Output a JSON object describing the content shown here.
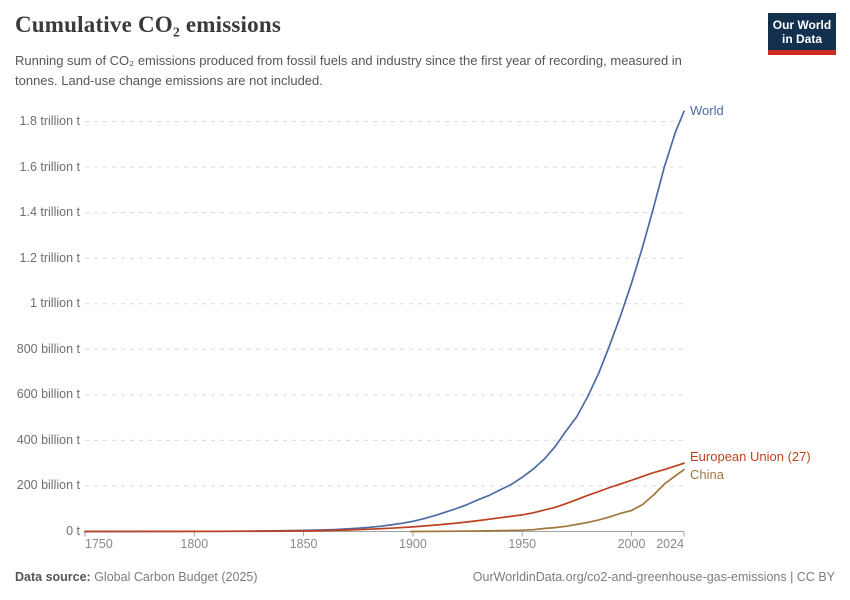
{
  "header": {
    "title": "Cumulative CO₂ emissions",
    "subtitle": "Running sum of CO₂ emissions produced from fossil fuels and industry since the first year of recording, measured in tonnes. Land-use change emissions are not included.",
    "logo": {
      "line1": "Our World",
      "line2": "in Data",
      "background": "#14304f",
      "accent": "#d02a20"
    }
  },
  "footer": {
    "source_label": "Data source:",
    "source_value": " Global Carbon Budget (2025)",
    "credit": "OurWorldinData.org/co2-and-greenhouse-gas-emissions | CC BY"
  },
  "chart_data": {
    "type": "line",
    "title": "Cumulative CO₂ emissions",
    "unit": "tonnes of CO₂ (series values in billions of tonnes)",
    "grid": "horizontal dashed gridlines, solid zero baseline",
    "legend": "end-of-line labels",
    "x_axis": {
      "range": [
        1750,
        2024
      ],
      "ticks": [
        1750,
        1800,
        1850,
        1900,
        1950,
        2000,
        2024
      ]
    },
    "y_axis": {
      "range_billion_t": [
        0,
        1800
      ],
      "ticks": [
        {
          "value": 0,
          "label": "0 t"
        },
        {
          "value": 200,
          "label": "200 billion t"
        },
        {
          "value": 400,
          "label": "400 billion t"
        },
        {
          "value": 600,
          "label": "600 billion t"
        },
        {
          "value": 800,
          "label": "800 billion t"
        },
        {
          "value": 1000,
          "label": "1 trillion t"
        },
        {
          "value": 1200,
          "label": "1.2 trillion t"
        },
        {
          "value": 1400,
          "label": "1.4 trillion t"
        },
        {
          "value": 1600,
          "label": "1.6 trillion t"
        },
        {
          "value": 1800,
          "label": "1.8 trillion t"
        }
      ]
    },
    "series": [
      {
        "name": "World",
        "color": "#4C6BA5",
        "points": [
          [
            1750,
            0
          ],
          [
            1760,
            0.1
          ],
          [
            1770,
            0.2
          ],
          [
            1780,
            0.3
          ],
          [
            1790,
            0.4
          ],
          [
            1800,
            0.7
          ],
          [
            1810,
            1.0
          ],
          [
            1820,
            1.5
          ],
          [
            1830,
            2.2
          ],
          [
            1840,
            3.3
          ],
          [
            1850,
            5
          ],
          [
            1855,
            6
          ],
          [
            1860,
            7.5
          ],
          [
            1865,
            9
          ],
          [
            1870,
            11.5
          ],
          [
            1875,
            14.5
          ],
          [
            1880,
            18.5
          ],
          [
            1885,
            23
          ],
          [
            1890,
            29
          ],
          [
            1895,
            36
          ],
          [
            1900,
            45
          ],
          [
            1905,
            56
          ],
          [
            1910,
            70
          ],
          [
            1915,
            85
          ],
          [
            1920,
            101
          ],
          [
            1925,
            119
          ],
          [
            1930,
            140
          ],
          [
            1935,
            159
          ],
          [
            1940,
            183
          ],
          [
            1945,
            207
          ],
          [
            1950,
            238
          ],
          [
            1955,
            274
          ],
          [
            1960,
            317
          ],
          [
            1965,
            372
          ],
          [
            1970,
            440
          ],
          [
            1975,
            505
          ],
          [
            1980,
            593
          ],
          [
            1985,
            695
          ],
          [
            1990,
            818
          ],
          [
            1995,
            948
          ],
          [
            2000,
            1090
          ],
          [
            2005,
            1248
          ],
          [
            2010,
            1420
          ],
          [
            2015,
            1600
          ],
          [
            2020,
            1752
          ],
          [
            2024,
            1845
          ]
        ]
      },
      {
        "name": "European Union (27)",
        "color": "#BF4123",
        "points": [
          [
            1750,
            0
          ],
          [
            1800,
            0.4
          ],
          [
            1820,
            0.8
          ],
          [
            1840,
            1.6
          ],
          [
            1850,
            2.4
          ],
          [
            1860,
            4
          ],
          [
            1870,
            6.5
          ],
          [
            1880,
            10
          ],
          [
            1890,
            14.5
          ],
          [
            1900,
            20
          ],
          [
            1910,
            28
          ],
          [
            1920,
            37
          ],
          [
            1930,
            48
          ],
          [
            1940,
            60.5
          ],
          [
            1950,
            73
          ],
          [
            1955,
            82
          ],
          [
            1960,
            94
          ],
          [
            1965,
            106
          ],
          [
            1970,
            122
          ],
          [
            1975,
            140
          ],
          [
            1980,
            159
          ],
          [
            1985,
            175
          ],
          [
            1990,
            193
          ],
          [
            1995,
            209
          ],
          [
            2000,
            225
          ],
          [
            2005,
            242
          ],
          [
            2010,
            258
          ],
          [
            2015,
            272
          ],
          [
            2020,
            287
          ],
          [
            2024,
            300
          ]
        ]
      },
      {
        "name": "China",
        "color": "#A0783F",
        "points": [
          [
            1899,
            0.1
          ],
          [
            1910,
            0.6
          ],
          [
            1920,
            1.2
          ],
          [
            1930,
            2.2
          ],
          [
            1940,
            3.8
          ],
          [
            1950,
            5.6
          ],
          [
            1955,
            8
          ],
          [
            1960,
            13
          ],
          [
            1965,
            17
          ],
          [
            1970,
            23
          ],
          [
            1975,
            31
          ],
          [
            1980,
            40
          ],
          [
            1985,
            51
          ],
          [
            1990,
            64
          ],
          [
            1995,
            80
          ],
          [
            2000,
            92
          ],
          [
            2005,
            118
          ],
          [
            2010,
            160
          ],
          [
            2015,
            208
          ],
          [
            2020,
            244
          ],
          [
            2024,
            272
          ]
        ]
      }
    ]
  }
}
